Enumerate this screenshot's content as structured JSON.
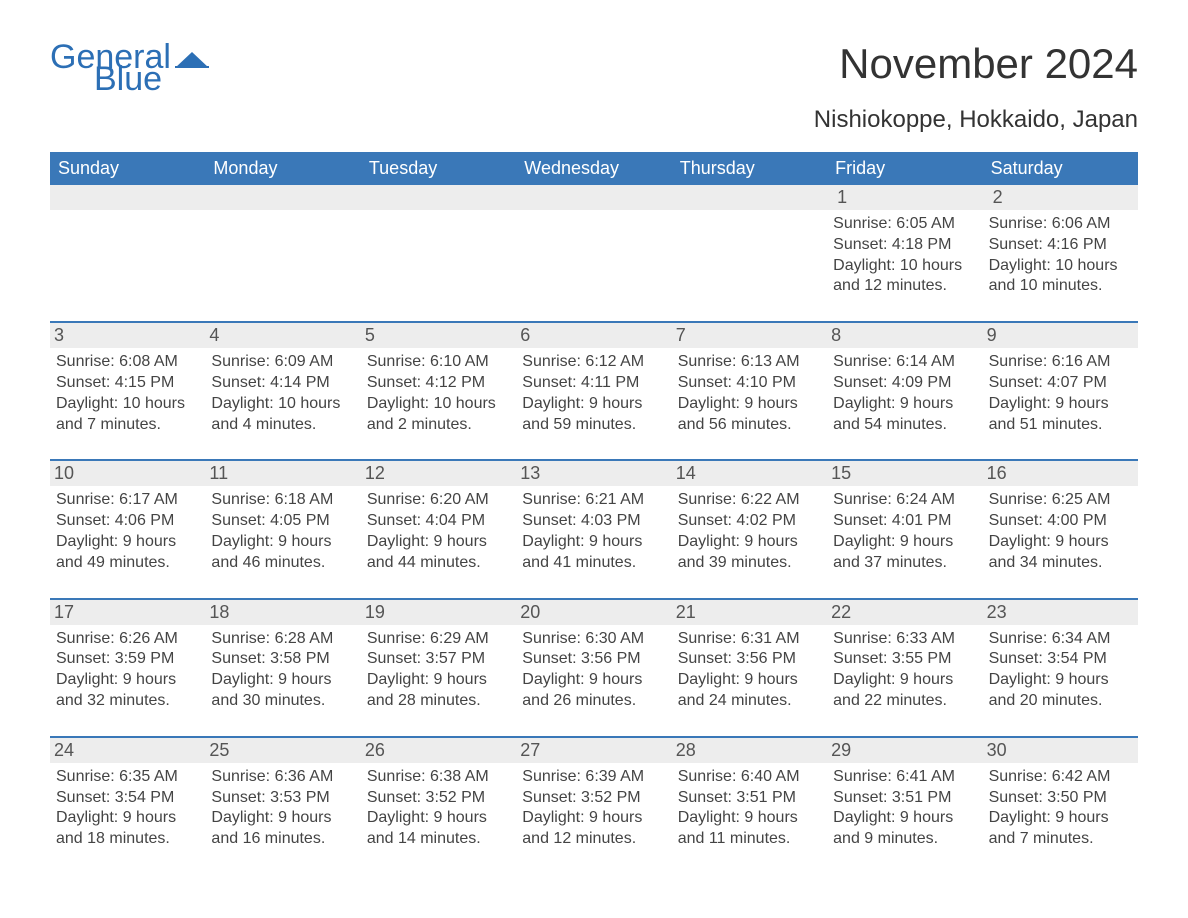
{
  "brand": {
    "text1": "General",
    "text2": "Blue",
    "flag_color": "#2c6fb5"
  },
  "header": {
    "title": "November 2024",
    "location": "Nishiokoppe, Hokkaido, Japan"
  },
  "colors": {
    "header_bg": "#3a78b8",
    "header_text": "#ffffff",
    "border": "#3a78b8",
    "daynum_bg": "#ededed",
    "body_text": "#444444"
  },
  "day_labels": [
    "Sunday",
    "Monday",
    "Tuesday",
    "Wednesday",
    "Thursday",
    "Friday",
    "Saturday"
  ],
  "weeks": [
    [
      null,
      null,
      null,
      null,
      null,
      {
        "d": "1",
        "sunrise": "Sunrise: 6:05 AM",
        "sunset": "Sunset: 4:18 PM",
        "dl1": "Daylight: 10 hours",
        "dl2": "and 12 minutes."
      },
      {
        "d": "2",
        "sunrise": "Sunrise: 6:06 AM",
        "sunset": "Sunset: 4:16 PM",
        "dl1": "Daylight: 10 hours",
        "dl2": "and 10 minutes."
      }
    ],
    [
      {
        "d": "3",
        "sunrise": "Sunrise: 6:08 AM",
        "sunset": "Sunset: 4:15 PM",
        "dl1": "Daylight: 10 hours",
        "dl2": "and 7 minutes."
      },
      {
        "d": "4",
        "sunrise": "Sunrise: 6:09 AM",
        "sunset": "Sunset: 4:14 PM",
        "dl1": "Daylight: 10 hours",
        "dl2": "and 4 minutes."
      },
      {
        "d": "5",
        "sunrise": "Sunrise: 6:10 AM",
        "sunset": "Sunset: 4:12 PM",
        "dl1": "Daylight: 10 hours",
        "dl2": "and 2 minutes."
      },
      {
        "d": "6",
        "sunrise": "Sunrise: 6:12 AM",
        "sunset": "Sunset: 4:11 PM",
        "dl1": "Daylight: 9 hours",
        "dl2": "and 59 minutes."
      },
      {
        "d": "7",
        "sunrise": "Sunrise: 6:13 AM",
        "sunset": "Sunset: 4:10 PM",
        "dl1": "Daylight: 9 hours",
        "dl2": "and 56 minutes."
      },
      {
        "d": "8",
        "sunrise": "Sunrise: 6:14 AM",
        "sunset": "Sunset: 4:09 PM",
        "dl1": "Daylight: 9 hours",
        "dl2": "and 54 minutes."
      },
      {
        "d": "9",
        "sunrise": "Sunrise: 6:16 AM",
        "sunset": "Sunset: 4:07 PM",
        "dl1": "Daylight: 9 hours",
        "dl2": "and 51 minutes."
      }
    ],
    [
      {
        "d": "10",
        "sunrise": "Sunrise: 6:17 AM",
        "sunset": "Sunset: 4:06 PM",
        "dl1": "Daylight: 9 hours",
        "dl2": "and 49 minutes."
      },
      {
        "d": "11",
        "sunrise": "Sunrise: 6:18 AM",
        "sunset": "Sunset: 4:05 PM",
        "dl1": "Daylight: 9 hours",
        "dl2": "and 46 minutes."
      },
      {
        "d": "12",
        "sunrise": "Sunrise: 6:20 AM",
        "sunset": "Sunset: 4:04 PM",
        "dl1": "Daylight: 9 hours",
        "dl2": "and 44 minutes."
      },
      {
        "d": "13",
        "sunrise": "Sunrise: 6:21 AM",
        "sunset": "Sunset: 4:03 PM",
        "dl1": "Daylight: 9 hours",
        "dl2": "and 41 minutes."
      },
      {
        "d": "14",
        "sunrise": "Sunrise: 6:22 AM",
        "sunset": "Sunset: 4:02 PM",
        "dl1": "Daylight: 9 hours",
        "dl2": "and 39 minutes."
      },
      {
        "d": "15",
        "sunrise": "Sunrise: 6:24 AM",
        "sunset": "Sunset: 4:01 PM",
        "dl1": "Daylight: 9 hours",
        "dl2": "and 37 minutes."
      },
      {
        "d": "16",
        "sunrise": "Sunrise: 6:25 AM",
        "sunset": "Sunset: 4:00 PM",
        "dl1": "Daylight: 9 hours",
        "dl2": "and 34 minutes."
      }
    ],
    [
      {
        "d": "17",
        "sunrise": "Sunrise: 6:26 AM",
        "sunset": "Sunset: 3:59 PM",
        "dl1": "Daylight: 9 hours",
        "dl2": "and 32 minutes."
      },
      {
        "d": "18",
        "sunrise": "Sunrise: 6:28 AM",
        "sunset": "Sunset: 3:58 PM",
        "dl1": "Daylight: 9 hours",
        "dl2": "and 30 minutes."
      },
      {
        "d": "19",
        "sunrise": "Sunrise: 6:29 AM",
        "sunset": "Sunset: 3:57 PM",
        "dl1": "Daylight: 9 hours",
        "dl2": "and 28 minutes."
      },
      {
        "d": "20",
        "sunrise": "Sunrise: 6:30 AM",
        "sunset": "Sunset: 3:56 PM",
        "dl1": "Daylight: 9 hours",
        "dl2": "and 26 minutes."
      },
      {
        "d": "21",
        "sunrise": "Sunrise: 6:31 AM",
        "sunset": "Sunset: 3:56 PM",
        "dl1": "Daylight: 9 hours",
        "dl2": "and 24 minutes."
      },
      {
        "d": "22",
        "sunrise": "Sunrise: 6:33 AM",
        "sunset": "Sunset: 3:55 PM",
        "dl1": "Daylight: 9 hours",
        "dl2": "and 22 minutes."
      },
      {
        "d": "23",
        "sunrise": "Sunrise: 6:34 AM",
        "sunset": "Sunset: 3:54 PM",
        "dl1": "Daylight: 9 hours",
        "dl2": "and 20 minutes."
      }
    ],
    [
      {
        "d": "24",
        "sunrise": "Sunrise: 6:35 AM",
        "sunset": "Sunset: 3:54 PM",
        "dl1": "Daylight: 9 hours",
        "dl2": "and 18 minutes."
      },
      {
        "d": "25",
        "sunrise": "Sunrise: 6:36 AM",
        "sunset": "Sunset: 3:53 PM",
        "dl1": "Daylight: 9 hours",
        "dl2": "and 16 minutes."
      },
      {
        "d": "26",
        "sunrise": "Sunrise: 6:38 AM",
        "sunset": "Sunset: 3:52 PM",
        "dl1": "Daylight: 9 hours",
        "dl2": "and 14 minutes."
      },
      {
        "d": "27",
        "sunrise": "Sunrise: 6:39 AM",
        "sunset": "Sunset: 3:52 PM",
        "dl1": "Daylight: 9 hours",
        "dl2": "and 12 minutes."
      },
      {
        "d": "28",
        "sunrise": "Sunrise: 6:40 AM",
        "sunset": "Sunset: 3:51 PM",
        "dl1": "Daylight: 9 hours",
        "dl2": "and 11 minutes."
      },
      {
        "d": "29",
        "sunrise": "Sunrise: 6:41 AM",
        "sunset": "Sunset: 3:51 PM",
        "dl1": "Daylight: 9 hours",
        "dl2": "and 9 minutes."
      },
      {
        "d": "30",
        "sunrise": "Sunrise: 6:42 AM",
        "sunset": "Sunset: 3:50 PM",
        "dl1": "Daylight: 9 hours",
        "dl2": "and 7 minutes."
      }
    ]
  ]
}
